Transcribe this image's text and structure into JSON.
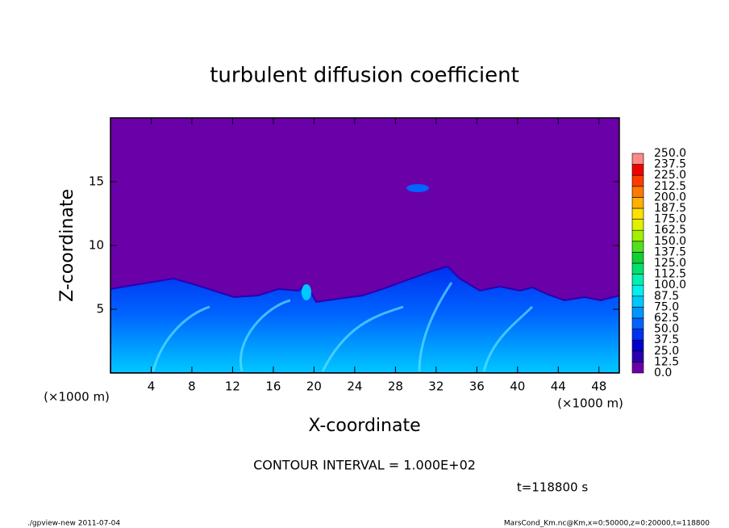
{
  "chart_data": {
    "type": "contour",
    "title": "turbulent diffusion coefficient",
    "xlabel": "X-coordinate",
    "ylabel": "Z-coordinate",
    "xunit": "(×1000 m)",
    "yunit": "(×1000 m)",
    "xlim": [
      0,
      50
    ],
    "ylim": [
      0,
      20
    ],
    "xticks": [
      4,
      8,
      12,
      16,
      20,
      24,
      28,
      32,
      36,
      40,
      44,
      48
    ],
    "yticks": [
      5,
      10,
      15
    ],
    "contour_interval": "CONTOUR INTERVAL = 1.000E+02",
    "time": "t=118800 s",
    "footer_left": "./gpview-new  2011-07-04",
    "footer_right": "MarsCond_Km.nc@Km,x=0:50000,z=0:20000,t=118800",
    "colorbar": {
      "levels": [
        {
          "value": 0,
          "label": "0.0"
        },
        {
          "value": 12.5,
          "label": "12.5"
        },
        {
          "value": 25,
          "label": "25.0"
        },
        {
          "value": 37.5,
          "label": "37.5"
        },
        {
          "value": 50,
          "label": "50.0"
        },
        {
          "value": 62.5,
          "label": "62.5"
        },
        {
          "value": 75,
          "label": "75.0"
        },
        {
          "value": 87.5,
          "label": "87.5"
        },
        {
          "value": 100,
          "label": "100.0"
        },
        {
          "value": 112.5,
          "label": "112.5"
        },
        {
          "value": 125,
          "label": "125.0"
        },
        {
          "value": 137.5,
          "label": "137.5"
        },
        {
          "value": 150,
          "label": "150.0"
        },
        {
          "value": 162.5,
          "label": "162.5"
        },
        {
          "value": 175,
          "label": "175.0"
        },
        {
          "value": 187.5,
          "label": "187.5"
        },
        {
          "value": 200,
          "label": "200.0"
        },
        {
          "value": 212.5,
          "label": "212.5"
        },
        {
          "value": 225,
          "label": "225.0"
        },
        {
          "value": 237.5,
          "label": "237.5"
        },
        {
          "value": 250,
          "label": "250.0"
        }
      ],
      "colors": [
        "#6a00a8",
        "#2a00b0",
        "#0000cc",
        "#0030f0",
        "#0064ff",
        "#0096ff",
        "#00c8ff",
        "#00f0f0",
        "#00f0b0",
        "#00e070",
        "#10d030",
        "#50e020",
        "#a0f000",
        "#e0f000",
        "#ffe000",
        "#ffb000",
        "#ff7800",
        "#ff3c00",
        "#f00000",
        "#ff8888"
      ]
    }
  }
}
